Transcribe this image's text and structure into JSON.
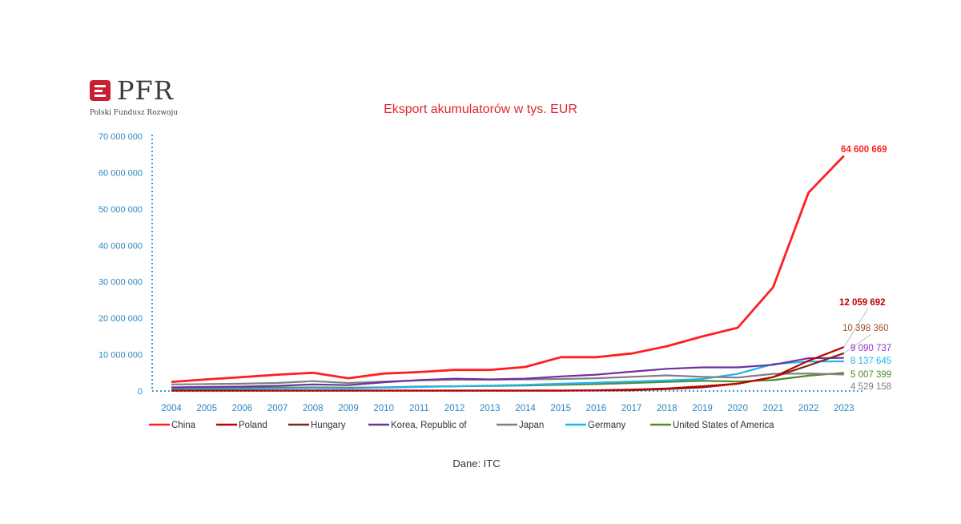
{
  "logo": {
    "name": "PFR",
    "subtitle": "Polski Fundusz Rozwoju"
  },
  "source": "Dane: ITC",
  "chart_data": {
    "type": "line",
    "title": "Eksport akumulatorów w tys. EUR",
    "xlabel": "",
    "ylabel": "",
    "ylim": [
      0,
      70000000
    ],
    "yticks": [
      0,
      10000000,
      20000000,
      30000000,
      40000000,
      50000000,
      60000000,
      70000000
    ],
    "ytick_labels": [
      "0",
      "10 000 000",
      "20 000 000",
      "30 000 000",
      "40 000 000",
      "50 000 000",
      "60 000 000",
      "70 000 000"
    ],
    "x": [
      "2004",
      "2005",
      "2006",
      "2007",
      "2008",
      "2009",
      "2010",
      "2011",
      "2012",
      "2013",
      "2014",
      "2015",
      "2016",
      "2017",
      "2018",
      "2019",
      "2020",
      "2021",
      "2022",
      "2023"
    ],
    "legend_position": "bottom",
    "grid": false,
    "series": [
      {
        "name": "China",
        "color": "#ff1f1f",
        "values": [
          2500000,
          3200000,
          3800000,
          4500000,
          5000000,
          3500000,
          4800000,
          5200000,
          5800000,
          5800000,
          6600000,
          9300000,
          9300000,
          10300000,
          12300000,
          15000000,
          17400000,
          28500000,
          54500000,
          64600669
        ],
        "end_label": "64 600 669"
      },
      {
        "name": "Poland",
        "color": "#c00000",
        "values": [
          100000,
          100000,
          100000,
          100000,
          100000,
          100000,
          100000,
          100000,
          100000,
          100000,
          100000,
          100000,
          200000,
          400000,
          700000,
          1300000,
          2000000,
          3800000,
          8300000,
          12059692
        ],
        "end_label": "12 059 692"
      },
      {
        "name": "Hungary",
        "color": "#7b2c10",
        "values": [
          100000,
          100000,
          100000,
          100000,
          100000,
          100000,
          100000,
          100000,
          100000,
          100000,
          100000,
          100000,
          150000,
          200000,
          500000,
          1000000,
          2000000,
          3800000,
          7000000,
          10398360
        ],
        "end_label": "10 398 360"
      },
      {
        "name": "Korea, Republic of",
        "color": "#7030a0",
        "values": [
          1000000,
          1100000,
          1200000,
          1400000,
          1800000,
          1600000,
          2400000,
          3000000,
          3400000,
          3200000,
          3400000,
          4000000,
          4500000,
          5300000,
          6100000,
          6500000,
          6500000,
          7200000,
          9000000,
          9090737
        ],
        "end_label": "9 090 737"
      },
      {
        "name": "Japan",
        "color": "#7f7f7f",
        "values": [
          1800000,
          1900000,
          2000000,
          2200000,
          2700000,
          2200000,
          2600000,
          2900000,
          3100000,
          3100000,
          3200000,
          3300000,
          3500000,
          3900000,
          4300000,
          3900000,
          3700000,
          4700000,
          4800000,
          4529158
        ],
        "end_label": "4 529 158"
      },
      {
        "name": "Germany",
        "color": "#1fb6ef",
        "values": [
          400000,
          500000,
          600000,
          700000,
          800000,
          700000,
          900000,
          1100000,
          1300000,
          1500000,
          1700000,
          2000000,
          2300000,
          2600000,
          2900000,
          3300000,
          4700000,
          7400000,
          8100000,
          8137645
        ],
        "end_label": "8 137 645"
      },
      {
        "name": "United States of America",
        "color": "#4f8a2f",
        "values": [
          600000,
          700000,
          800000,
          900000,
          1000000,
          900000,
          1000000,
          1200000,
          1300000,
          1400000,
          1500000,
          1700000,
          1900000,
          2200000,
          2500000,
          2800000,
          2600000,
          3000000,
          4200000,
          5007399
        ],
        "end_label": "5 007 399"
      }
    ]
  }
}
